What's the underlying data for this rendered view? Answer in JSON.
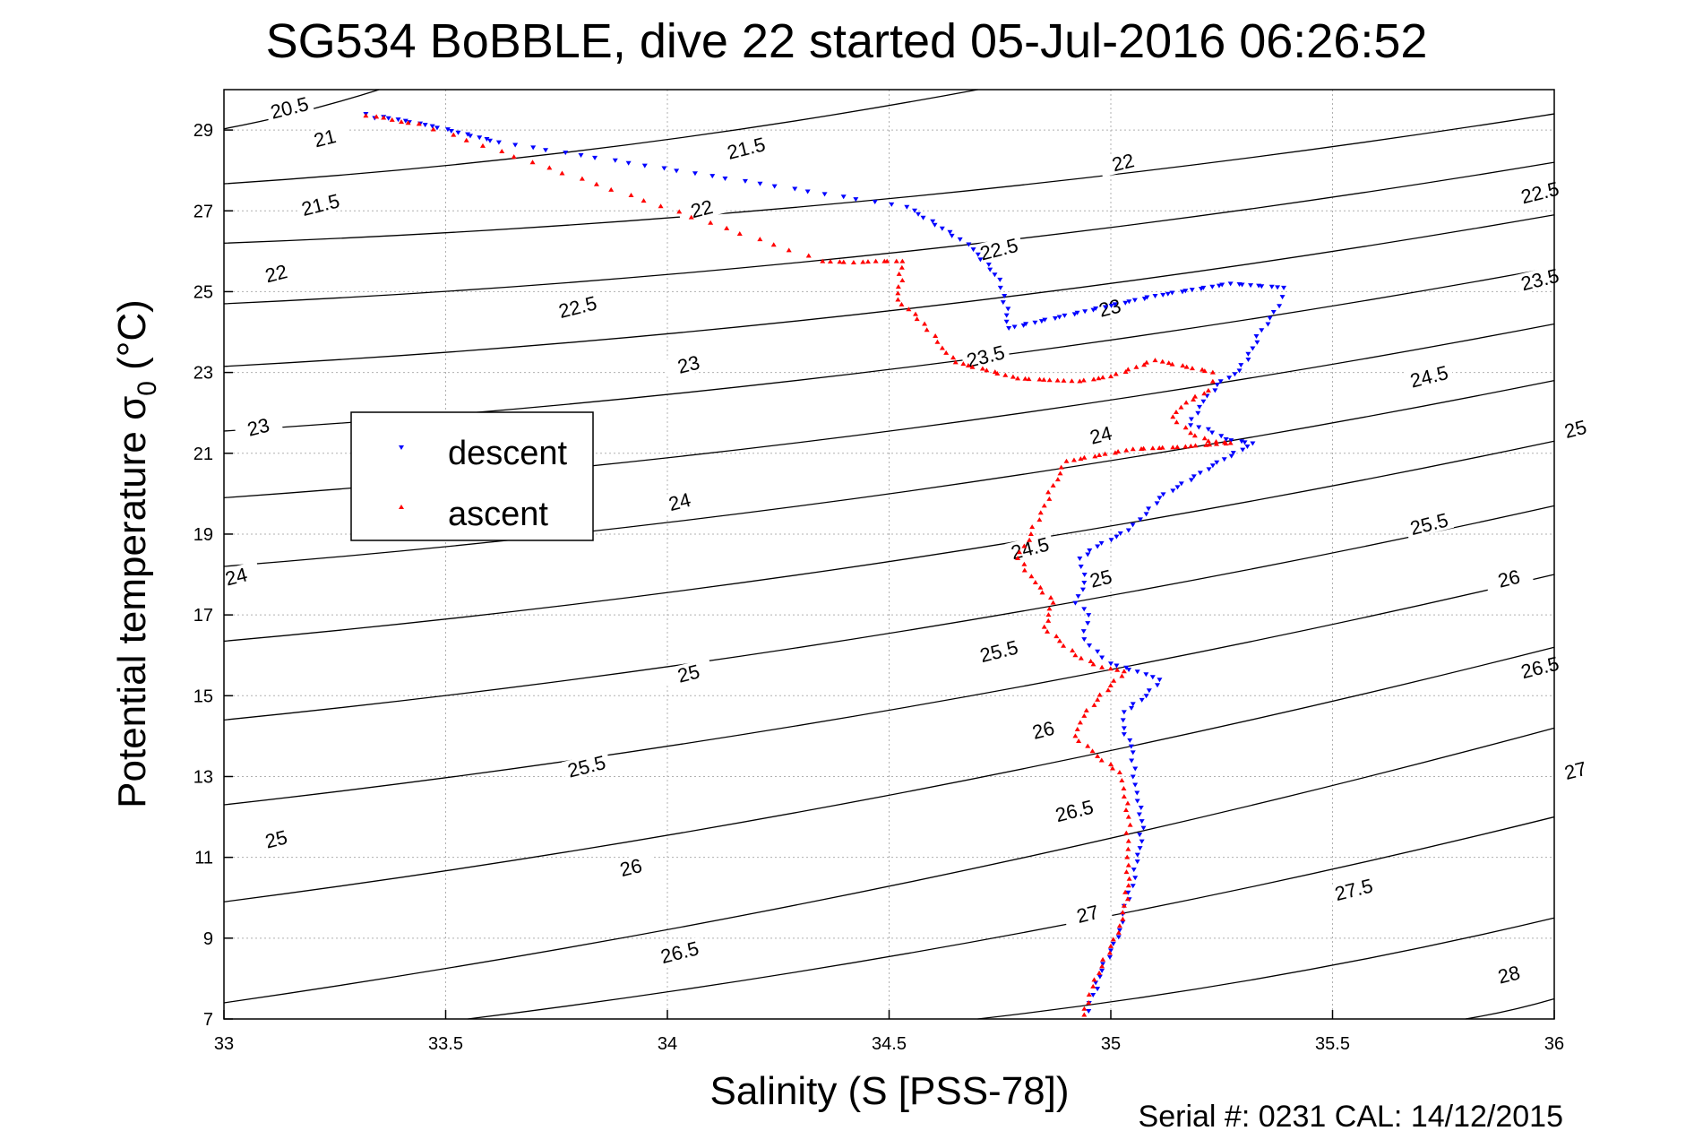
{
  "chart_data": {
    "type": "scatter",
    "title": "SG534 BoBBLE, dive 22 started 05-Jul-2016 06:26:52",
    "xlabel": "Salinity (S [PSS-78])",
    "ylabel_main": "Potential temperature σ",
    "ylabel_sub": "0",
    "ylabel_unit": " (°C)",
    "xlim": [
      33,
      36
    ],
    "ylim": [
      7,
      30
    ],
    "xticks": [
      33,
      33.5,
      34,
      34.5,
      35,
      35.5,
      36
    ],
    "yticks": [
      7,
      9,
      11,
      13,
      15,
      17,
      19,
      21,
      23,
      25,
      27,
      29
    ],
    "grid": true,
    "legend": {
      "placement": "center-left",
      "entries": [
        "descent",
        "ascent"
      ]
    },
    "footer": "Serial #: 0231  CAL: 14/12/2015",
    "colors": {
      "descent": "#0000ff",
      "ascent": "#ff0000",
      "contour": "#000000",
      "grid": "#b0b0b0"
    },
    "contours": [
      {
        "level": "20.5",
        "x1": 33,
        "y1": 29.03,
        "x2": 33.35,
        "y2": 30
      },
      {
        "level": "21",
        "x1": 33,
        "y1": 27.67,
        "x2": 34.7,
        "y2": 30
      },
      {
        "level": "21.5",
        "x1": 33,
        "y1": 26.2,
        "x2": 36,
        "y2": 29.4
      },
      {
        "level": "22",
        "x1": 33,
        "y1": 24.7,
        "x2": 36,
        "y2": 28.2
      },
      {
        "level": "22.5",
        "x1": 33,
        "y1": 23.15,
        "x2": 36,
        "y2": 26.9
      },
      {
        "level": "23",
        "x1": 33,
        "y1": 21.55,
        "x2": 36,
        "y2": 25.6
      },
      {
        "level": "23.5",
        "x1": 33,
        "y1": 19.9,
        "x2": 36,
        "y2": 24.2
      },
      {
        "level": "24",
        "x1": 33,
        "y1": 18.2,
        "x2": 36,
        "y2": 22.8
      },
      {
        "level": "24.5",
        "x1": 33,
        "y1": 16.35,
        "x2": 36,
        "y2": 21.3
      },
      {
        "level": "25",
        "x1": 33,
        "y1": 14.4,
        "x2": 36,
        "y2": 19.7
      },
      {
        "level": "25.5",
        "x1": 33,
        "y1": 12.3,
        "x2": 36,
        "y2": 18.0
      },
      {
        "level": "26",
        "x1": 33,
        "y1": 9.9,
        "x2": 36,
        "y2": 16.2
      },
      {
        "level": "26.5",
        "x1": 33,
        "y1": 7.4,
        "x2": 36,
        "y2": 14.2
      },
      {
        "level": "27",
        "x1": 33.55,
        "y1": 7,
        "x2": 36,
        "y2": 12.0
      },
      {
        "level": "27.5",
        "x1": 34.7,
        "y1": 7,
        "x2": 36,
        "y2": 9.5
      },
      {
        "level": "28",
        "x1": 35.8,
        "y1": 7,
        "x2": 36,
        "y2": 7.5
      }
    ],
    "contour_labels": [
      {
        "text": "20.5",
        "x": 33.15,
        "y": 29.45
      },
      {
        "text": "21",
        "x": 33.23,
        "y": 28.7
      },
      {
        "text": "21.5",
        "x": 33.22,
        "y": 27.05
      },
      {
        "text": "21.5",
        "x": 34.18,
        "y": 28.45
      },
      {
        "text": "22",
        "x": 33.12,
        "y": 25.35
      },
      {
        "text": "22",
        "x": 34.08,
        "y": 26.95
      },
      {
        "text": "22",
        "x": 35.03,
        "y": 28.1
      },
      {
        "text": "22.5",
        "x": 33.8,
        "y": 24.52
      },
      {
        "text": "22.5",
        "x": 34.75,
        "y": 25.95
      },
      {
        "text": "22.5",
        "x": 35.97,
        "y": 27.35
      },
      {
        "text": "23",
        "x": 33.08,
        "y": 21.55
      },
      {
        "text": "23",
        "x": 34.05,
        "y": 23.1
      },
      {
        "text": "23",
        "x": 35.0,
        "y": 24.5
      },
      {
        "text": "23.5",
        "x": 34.72,
        "y": 23.3
      },
      {
        "text": "23.5",
        "x": 35.97,
        "y": 25.2
      },
      {
        "text": "24",
        "x": 33.03,
        "y": 17.85
      },
      {
        "text": "24",
        "x": 34.03,
        "y": 19.7
      },
      {
        "text": "24",
        "x": 34.98,
        "y": 21.35
      },
      {
        "text": "24",
        "x": 36.15,
        "y": 24.65
      },
      {
        "text": "24.5",
        "x": 34.82,
        "y": 18.55
      },
      {
        "text": "24.5",
        "x": 35.72,
        "y": 22.8
      },
      {
        "text": "25",
        "x": 34.05,
        "y": 15.45
      },
      {
        "text": "25",
        "x": 34.98,
        "y": 17.8
      },
      {
        "text": "25",
        "x": 36.05,
        "y": 21.5
      },
      {
        "text": "25",
        "x": 33.12,
        "y": 11.35
      },
      {
        "text": "25.5",
        "x": 33.82,
        "y": 13.15
      },
      {
        "text": "25.5",
        "x": 34.75,
        "y": 16.0
      },
      {
        "text": "25.5",
        "x": 35.72,
        "y": 19.15
      },
      {
        "text": "26",
        "x": 33.92,
        "y": 10.65
      },
      {
        "text": "26",
        "x": 34.85,
        "y": 14.05
      },
      {
        "text": "26",
        "x": 35.9,
        "y": 17.8
      },
      {
        "text": "26.5",
        "x": 34.03,
        "y": 8.55
      },
      {
        "text": "26.5",
        "x": 34.92,
        "y": 12.05
      },
      {
        "text": "26.5",
        "x": 35.97,
        "y": 15.6
      },
      {
        "text": "27",
        "x": 34.95,
        "y": 9.5
      },
      {
        "text": "27",
        "x": 36.05,
        "y": 13.05
      },
      {
        "text": "27.5",
        "x": 35.55,
        "y": 10.1
      },
      {
        "text": "28",
        "x": 35.9,
        "y": 8.0
      }
    ],
    "series": [
      {
        "name": "descent",
        "points": [
          [
            33.32,
            29.4
          ],
          [
            33.34,
            29.3
          ],
          [
            33.36,
            29.33
          ],
          [
            33.47,
            29.1
          ],
          [
            33.62,
            28.7
          ],
          [
            34.54,
            27.1
          ],
          [
            34.66,
            26.3
          ],
          [
            34.69,
            26.05
          ],
          [
            34.75,
            25.3
          ],
          [
            34.76,
            24.9
          ],
          [
            34.77,
            24.1
          ],
          [
            35.1,
            24.9
          ],
          [
            35.27,
            25.2
          ],
          [
            35.39,
            25.1
          ],
          [
            35.38,
            24.65
          ],
          [
            35.34,
            24.05
          ],
          [
            35.32,
            23.6
          ],
          [
            35.29,
            23.05
          ],
          [
            35.24,
            22.7
          ],
          [
            35.2,
            22.15
          ],
          [
            35.18,
            21.7
          ],
          [
            35.22,
            21.6
          ],
          [
            35.26,
            21.35
          ],
          [
            35.32,
            21.25
          ],
          [
            35.23,
            20.7
          ],
          [
            35.11,
            19.9
          ],
          [
            35.08,
            19.5
          ],
          [
            35.04,
            19.1
          ],
          [
            34.97,
            18.7
          ],
          [
            34.93,
            18.4
          ],
          [
            34.94,
            17.8
          ],
          [
            34.92,
            17.3
          ],
          [
            34.95,
            17.0
          ],
          [
            34.94,
            16.4
          ],
          [
            34.97,
            16.1
          ],
          [
            35.0,
            15.8
          ],
          [
            35.06,
            15.6
          ],
          [
            35.11,
            15.4
          ],
          [
            35.08,
            15.0
          ],
          [
            35.03,
            14.6
          ],
          [
            35.03,
            14.2
          ],
          [
            35.05,
            13.6
          ],
          [
            35.05,
            13.0
          ],
          [
            35.06,
            12.4
          ],
          [
            35.07,
            11.9
          ],
          [
            35.07,
            11.4
          ],
          [
            35.06,
            10.9
          ],
          [
            35.05,
            10.3
          ],
          [
            35.03,
            9.8
          ],
          [
            35.02,
            9.2
          ],
          [
            35.0,
            8.7
          ],
          [
            34.98,
            8.2
          ],
          [
            34.96,
            7.6
          ],
          [
            34.95,
            7.2
          ]
        ]
      },
      {
        "name": "ascent",
        "points": [
          [
            33.32,
            29.35
          ],
          [
            33.36,
            29.3
          ],
          [
            33.4,
            29.2
          ],
          [
            33.44,
            29.15
          ],
          [
            34.35,
            25.75
          ],
          [
            34.42,
            25.72
          ],
          [
            34.47,
            25.75
          ],
          [
            34.53,
            25.75
          ],
          [
            34.52,
            24.8
          ],
          [
            34.58,
            24.2
          ],
          [
            34.62,
            23.6
          ],
          [
            34.65,
            23.25
          ],
          [
            34.72,
            23.05
          ],
          [
            34.79,
            22.85
          ],
          [
            34.88,
            22.8
          ],
          [
            34.93,
            22.78
          ],
          [
            35.0,
            22.9
          ],
          [
            35.1,
            23.3
          ],
          [
            35.23,
            23.0
          ],
          [
            35.22,
            22.55
          ],
          [
            35.17,
            22.25
          ],
          [
            35.14,
            21.9
          ],
          [
            35.18,
            21.5
          ],
          [
            35.22,
            21.3
          ],
          [
            35.27,
            21.25
          ],
          [
            35.15,
            21.15
          ],
          [
            35.05,
            21.1
          ],
          [
            34.9,
            20.8
          ],
          [
            34.87,
            20.2
          ],
          [
            34.85,
            19.7
          ],
          [
            34.82,
            19.0
          ],
          [
            34.79,
            18.4
          ],
          [
            34.83,
            17.8
          ],
          [
            34.87,
            17.3
          ],
          [
            34.85,
            16.7
          ],
          [
            34.92,
            16.0
          ],
          [
            34.98,
            15.7
          ],
          [
            35.03,
            15.6
          ],
          [
            34.97,
            14.9
          ],
          [
            34.94,
            14.5
          ],
          [
            34.92,
            14.0
          ],
          [
            34.97,
            13.5
          ],
          [
            35.02,
            13.1
          ],
          [
            35.03,
            12.5
          ],
          [
            35.04,
            12.0
          ],
          [
            35.04,
            11.4
          ],
          [
            35.04,
            10.8
          ],
          [
            35.04,
            10.3
          ],
          [
            35.03,
            9.8
          ],
          [
            35.02,
            9.3
          ],
          [
            35.0,
            8.8
          ],
          [
            34.98,
            8.3
          ],
          [
            34.96,
            7.8
          ],
          [
            34.95,
            7.4
          ],
          [
            34.94,
            7.1
          ]
        ]
      }
    ]
  }
}
